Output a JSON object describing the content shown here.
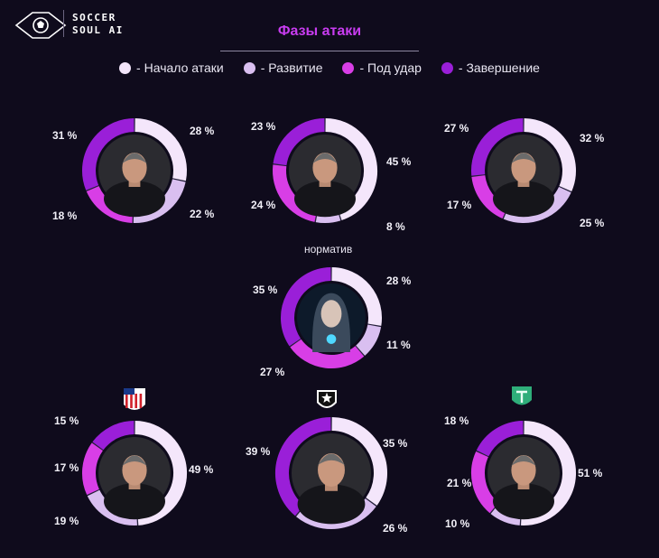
{
  "header": {
    "logo_line1": "SOCCER",
    "logo_line2": "SOUL AI",
    "title": "Фазы атаки"
  },
  "legend": [
    {
      "label": "- Начало атаки",
      "color": "#f4e6fb"
    },
    {
      "label": "- Развитие",
      "color": "#d9bff0"
    },
    {
      "label": "- Под удар",
      "color": "#d83ee6"
    },
    {
      "label": "- Завершение",
      "color": "#9a1fd8"
    }
  ],
  "chart_data": {
    "type": "pie",
    "title": "Фазы атаки",
    "categories": [
      "Начало атаки",
      "Развитие",
      "Под удар",
      "Завершение"
    ],
    "colors": [
      "#f4e6fb",
      "#d9bff0",
      "#d83ee6",
      "#9a1fd8"
    ],
    "charts": [
      {
        "id": "top-left",
        "caption": "",
        "values": [
          28,
          22,
          18,
          31
        ],
        "labels": [
          "28 %",
          "22 %",
          "18 %",
          "31 %"
        ],
        "avatar": "coach-icon"
      },
      {
        "id": "top-center",
        "caption": "",
        "values": [
          45,
          8,
          24,
          23
        ],
        "labels": [
          "45 %",
          "8 %",
          "24 %",
          "23 %"
        ],
        "avatar": "coach-icon"
      },
      {
        "id": "top-right",
        "caption": "",
        "values": [
          32,
          25,
          17,
          27
        ],
        "labels": [
          "32 %",
          "25 %",
          "17 %",
          "27 %"
        ],
        "avatar": "coach-icon"
      },
      {
        "id": "middle",
        "caption": "норматив",
        "values": [
          28,
          11,
          27,
          35
        ],
        "labels": [
          "28 %",
          "11 %",
          "27 %",
          "35 %"
        ],
        "avatar": "ai-avatar-icon"
      },
      {
        "id": "bottom-left",
        "caption": "",
        "values": [
          49,
          19,
          17,
          15
        ],
        "labels": [
          "49 %",
          "19 %",
          "17 %",
          "15 %"
        ],
        "avatar": "coach-icon",
        "badge": "atletico-crest-icon"
      },
      {
        "id": "bottom-center",
        "caption": "",
        "values": [
          35,
          26,
          0,
          39
        ],
        "labels": [
          "35 %",
          "26 %",
          "",
          "39 %"
        ],
        "avatar": "coach-icon",
        "badge": "botafogo-star-icon"
      },
      {
        "id": "bottom-right",
        "caption": "",
        "values": [
          51,
          10,
          21,
          18
        ],
        "labels": [
          "51 %",
          "10 %",
          "21 %",
          "18 %"
        ],
        "avatar": "coach-icon",
        "badge": "shield-crest-icon"
      }
    ]
  }
}
